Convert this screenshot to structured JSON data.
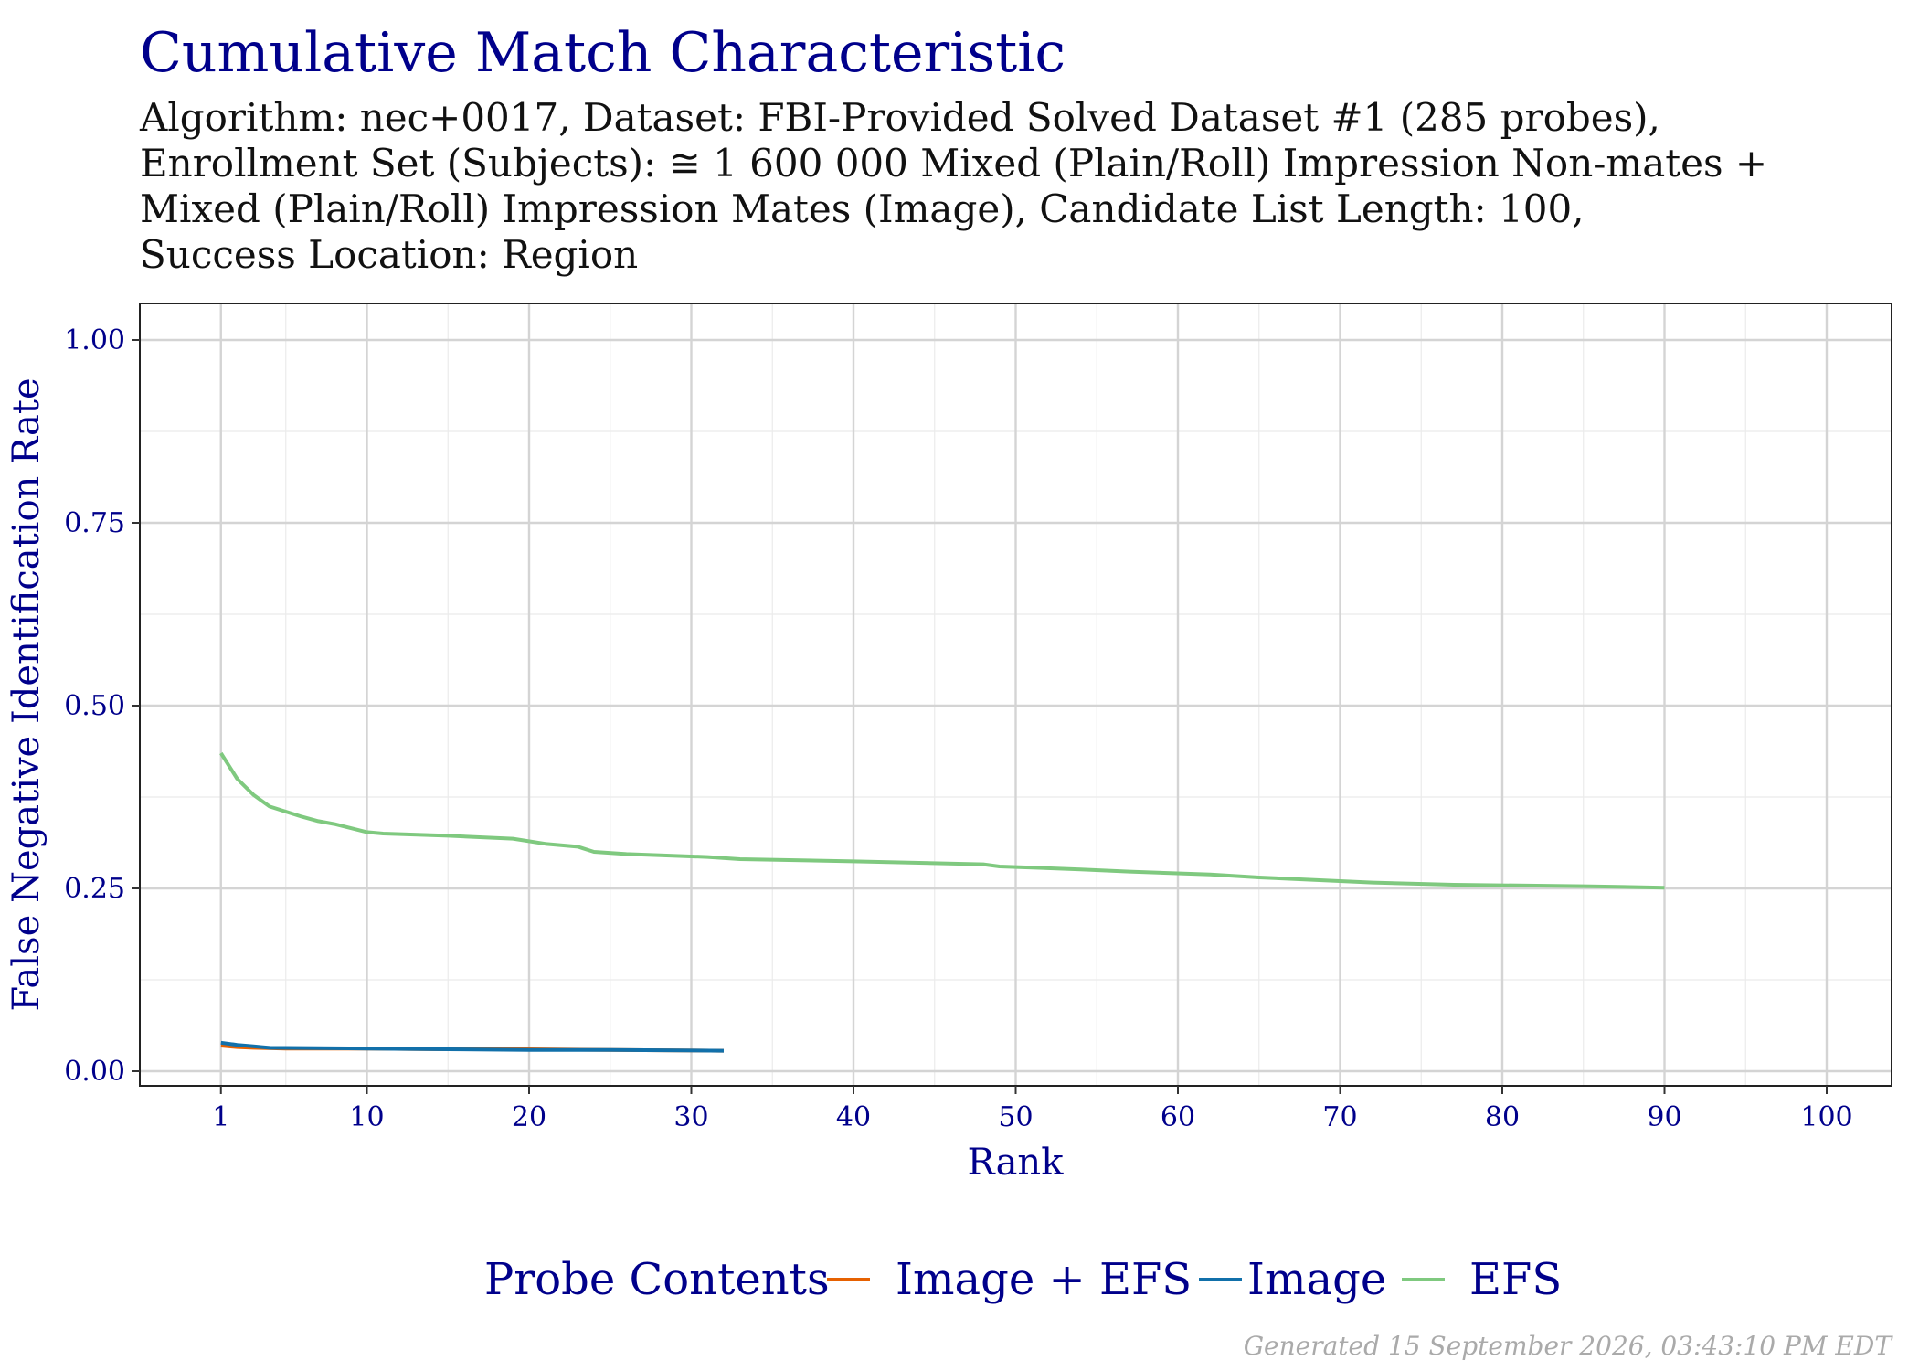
{
  "chart_data": {
    "type": "line",
    "title": "Cumulative Match Characteristic",
    "subtitle_lines": [
      "Algorithm: nec+0017, Dataset: FBI-Provided Solved Dataset #1 (285 probes),",
      "Enrollment Set (Subjects): ≅ 1 600 000 Mixed (Plain/Roll) Impression Non-mates +",
      "Mixed (Plain/Roll) Impression Mates (Image), Candidate List Length: 100,",
      "Success Location: Region"
    ],
    "xlabel": "Rank",
    "ylabel": "False Negative Identification Rate",
    "xlim": [
      -4,
      104
    ],
    "ylim": [
      -0.02,
      1.05
    ],
    "x_ticks": [
      1,
      10,
      20,
      30,
      40,
      50,
      60,
      70,
      80,
      90,
      100
    ],
    "y_ticks": [
      0.0,
      0.25,
      0.5,
      0.75,
      1.0
    ],
    "y_tick_labels": [
      "0.00",
      "0.25",
      "0.50",
      "0.75",
      "1.00"
    ],
    "grid": true,
    "legend_position": "bottom",
    "legend_title": "Probe Contents",
    "series": [
      {
        "name": "Image + EFS",
        "color": "#E66101",
        "x": [
          1,
          2,
          3,
          5,
          10,
          15,
          20,
          25,
          32
        ],
        "y": [
          0.035,
          0.033,
          0.032,
          0.031,
          0.031,
          0.03,
          0.03,
          0.029,
          0.028
        ]
      },
      {
        "name": "Image",
        "color": "#1170AA",
        "x": [
          1,
          2,
          3,
          4,
          10,
          15,
          20,
          25,
          32
        ],
        "y": [
          0.039,
          0.036,
          0.034,
          0.032,
          0.031,
          0.03,
          0.029,
          0.029,
          0.028
        ]
      },
      {
        "name": "EFS",
        "color": "#7FC97F",
        "x": [
          1,
          2,
          3,
          4,
          6,
          7,
          8,
          10,
          11,
          15,
          19,
          21,
          23,
          24,
          26,
          31,
          33,
          40,
          48,
          49,
          54,
          57,
          62,
          65,
          72,
          77,
          85,
          90
        ],
        "y": [
          0.435,
          0.4,
          0.378,
          0.362,
          0.348,
          0.342,
          0.338,
          0.327,
          0.325,
          0.322,
          0.318,
          0.311,
          0.307,
          0.3,
          0.297,
          0.293,
          0.29,
          0.287,
          0.283,
          0.28,
          0.276,
          0.273,
          0.269,
          0.265,
          0.258,
          0.255,
          0.253,
          0.251
        ]
      }
    ]
  },
  "footer": "Generated 15 September 2026, 03:43:10 PM EDT"
}
